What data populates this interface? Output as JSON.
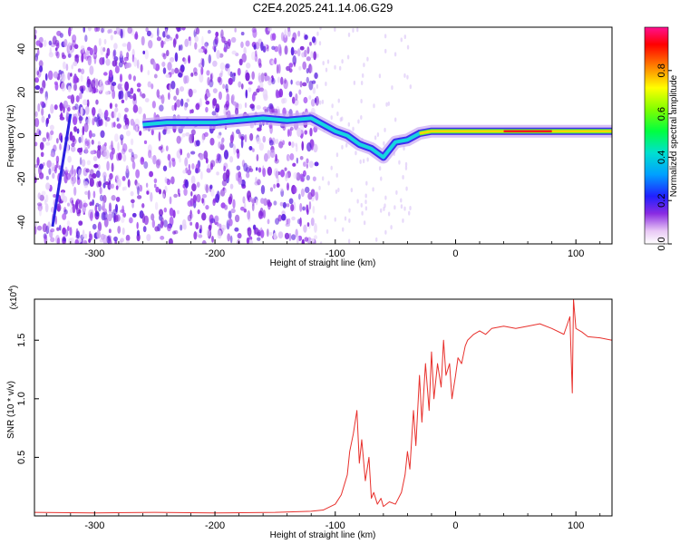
{
  "title": "C2E4.2025.241.14.06.G29",
  "chart_data": [
    {
      "type": "heatmap",
      "name": "spectrogram",
      "xlabel": "Height of straight line (km)",
      "ylabel": "Frequency (Hz)",
      "xlim": [
        -350,
        130
      ],
      "ylim": [
        -50,
        50
      ],
      "x_ticks": [
        -300,
        -200,
        -100,
        0,
        100
      ],
      "y_ticks": [
        -40,
        -20,
        0,
        20,
        40
      ],
      "colorbar": {
        "label": "Normalized spectral amplitude",
        "range": [
          0,
          1
        ],
        "ticks": [
          0.0,
          0.2,
          0.4,
          0.6,
          0.8
        ]
      },
      "ridge": {
        "description": "dominant frequency track",
        "x": [
          -260,
          -240,
          -200,
          -180,
          -160,
          -140,
          -120,
          -110,
          -100,
          -90,
          -80,
          -70,
          -60,
          -50,
          -40,
          -30,
          -20,
          0,
          20,
          40,
          60,
          80,
          100,
          130
        ],
        "y": [
          5,
          6,
          6,
          7,
          8,
          7,
          8,
          5,
          2,
          0,
          -4,
          -6,
          -10,
          -3,
          -2,
          1,
          2,
          2,
          2,
          2,
          2,
          2,
          2,
          2
        ]
      }
    },
    {
      "type": "line",
      "name": "snr",
      "xlabel": "Height of straight line (km)",
      "ylabel": "SNR (10 * v/v)",
      "y_scale_label": "(x10",
      "y_scale_exp": "4",
      "y_scale": 10000,
      "xlim": [
        -350,
        130
      ],
      "ylim": [
        0,
        1.85
      ],
      "x_ticks": [
        -300,
        -200,
        -100,
        0,
        100
      ],
      "y_ticks": [
        0.5,
        1.0,
        1.5
      ],
      "color": "#e8302c",
      "series": [
        {
          "name": "SNR",
          "x": [
            -350,
            -300,
            -250,
            -200,
            -150,
            -120,
            -110,
            -100,
            -95,
            -90,
            -88,
            -85,
            -82,
            -80,
            -78,
            -75,
            -72,
            -70,
            -68,
            -65,
            -62,
            -60,
            -55,
            -50,
            -45,
            -42,
            -40,
            -38,
            -35,
            -33,
            -30,
            -28,
            -25,
            -22,
            -20,
            -18,
            -15,
            -12,
            -10,
            -8,
            -5,
            -3,
            0,
            2,
            5,
            8,
            10,
            15,
            20,
            25,
            30,
            40,
            50,
            60,
            70,
            80,
            90,
            95,
            97,
            98,
            100,
            105,
            110,
            120,
            130
          ],
          "values": [
            0.03,
            0.025,
            0.03,
            0.025,
            0.03,
            0.04,
            0.05,
            0.1,
            0.18,
            0.35,
            0.55,
            0.7,
            0.9,
            0.45,
            0.65,
            0.3,
            0.5,
            0.15,
            0.2,
            0.1,
            0.15,
            0.08,
            0.12,
            0.1,
            0.2,
            0.35,
            0.55,
            0.4,
            0.9,
            0.6,
            1.2,
            0.8,
            1.3,
            0.9,
            1.4,
            1.0,
            1.3,
            1.1,
            1.5,
            1.2,
            1.3,
            1.0,
            1.2,
            1.35,
            1.3,
            1.45,
            1.5,
            1.55,
            1.58,
            1.55,
            1.6,
            1.62,
            1.6,
            1.62,
            1.64,
            1.6,
            1.55,
            1.7,
            1.05,
            1.85,
            1.6,
            1.57,
            1.53,
            1.52,
            1.5
          ]
        }
      ]
    }
  ]
}
